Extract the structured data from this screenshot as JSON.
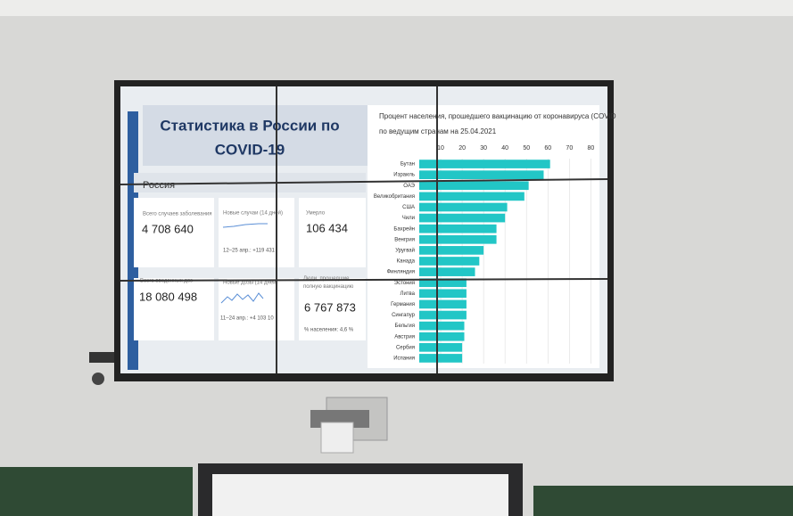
{
  "header": {
    "title_lines": [
      "Статистика в России по",
      "COVID-19"
    ]
  },
  "region": "Россия",
  "cards": [
    {
      "label": "Всего случаев заболевания",
      "value": "4 708 640"
    },
    {
      "label": "Новые случаи (14 дней)",
      "note": "12–25 апр.: +119 431"
    },
    {
      "label": "Умерло",
      "value": "106 434"
    },
    {
      "label": "Всего введенных доз",
      "value": "18 080 498"
    },
    {
      "label": "Новые дозы (14 дней)",
      "note": "11–24 апр.: +4 103 10"
    },
    {
      "label": "Люди, прошедшие полную вакцинацию",
      "value": "6 767 873",
      "note": "% населения: 4,6 %"
    }
  ],
  "chart_data": {
    "type": "bar",
    "orientation": "horizontal",
    "title_lines": [
      "Процент населения, прошедшего вакцинацию от коронавируса (COVID",
      "по ведущим странам на 25.04.2021"
    ],
    "categories": [
      "Бутан",
      "Израиль",
      "ОАЭ",
      "Великобритания",
      "США",
      "Чили",
      "Бахрейн",
      "Венгрия",
      "Уругвай",
      "Канада",
      "Финляндия",
      "Эстония",
      "Литва",
      "Германия",
      "Сингапур",
      "Бельгия",
      "Австрия",
      "Сербия",
      "Испания"
    ],
    "values": [
      61,
      58,
      51,
      49,
      41,
      40,
      36,
      36,
      30,
      28,
      26,
      22,
      22,
      22,
      22,
      21,
      21,
      20,
      20
    ],
    "color": "#22c6c6",
    "xlim": [
      0,
      84
    ],
    "xticks": [
      10,
      20,
      30,
      40,
      50,
      60,
      70,
      80
    ],
    "grid": true
  }
}
